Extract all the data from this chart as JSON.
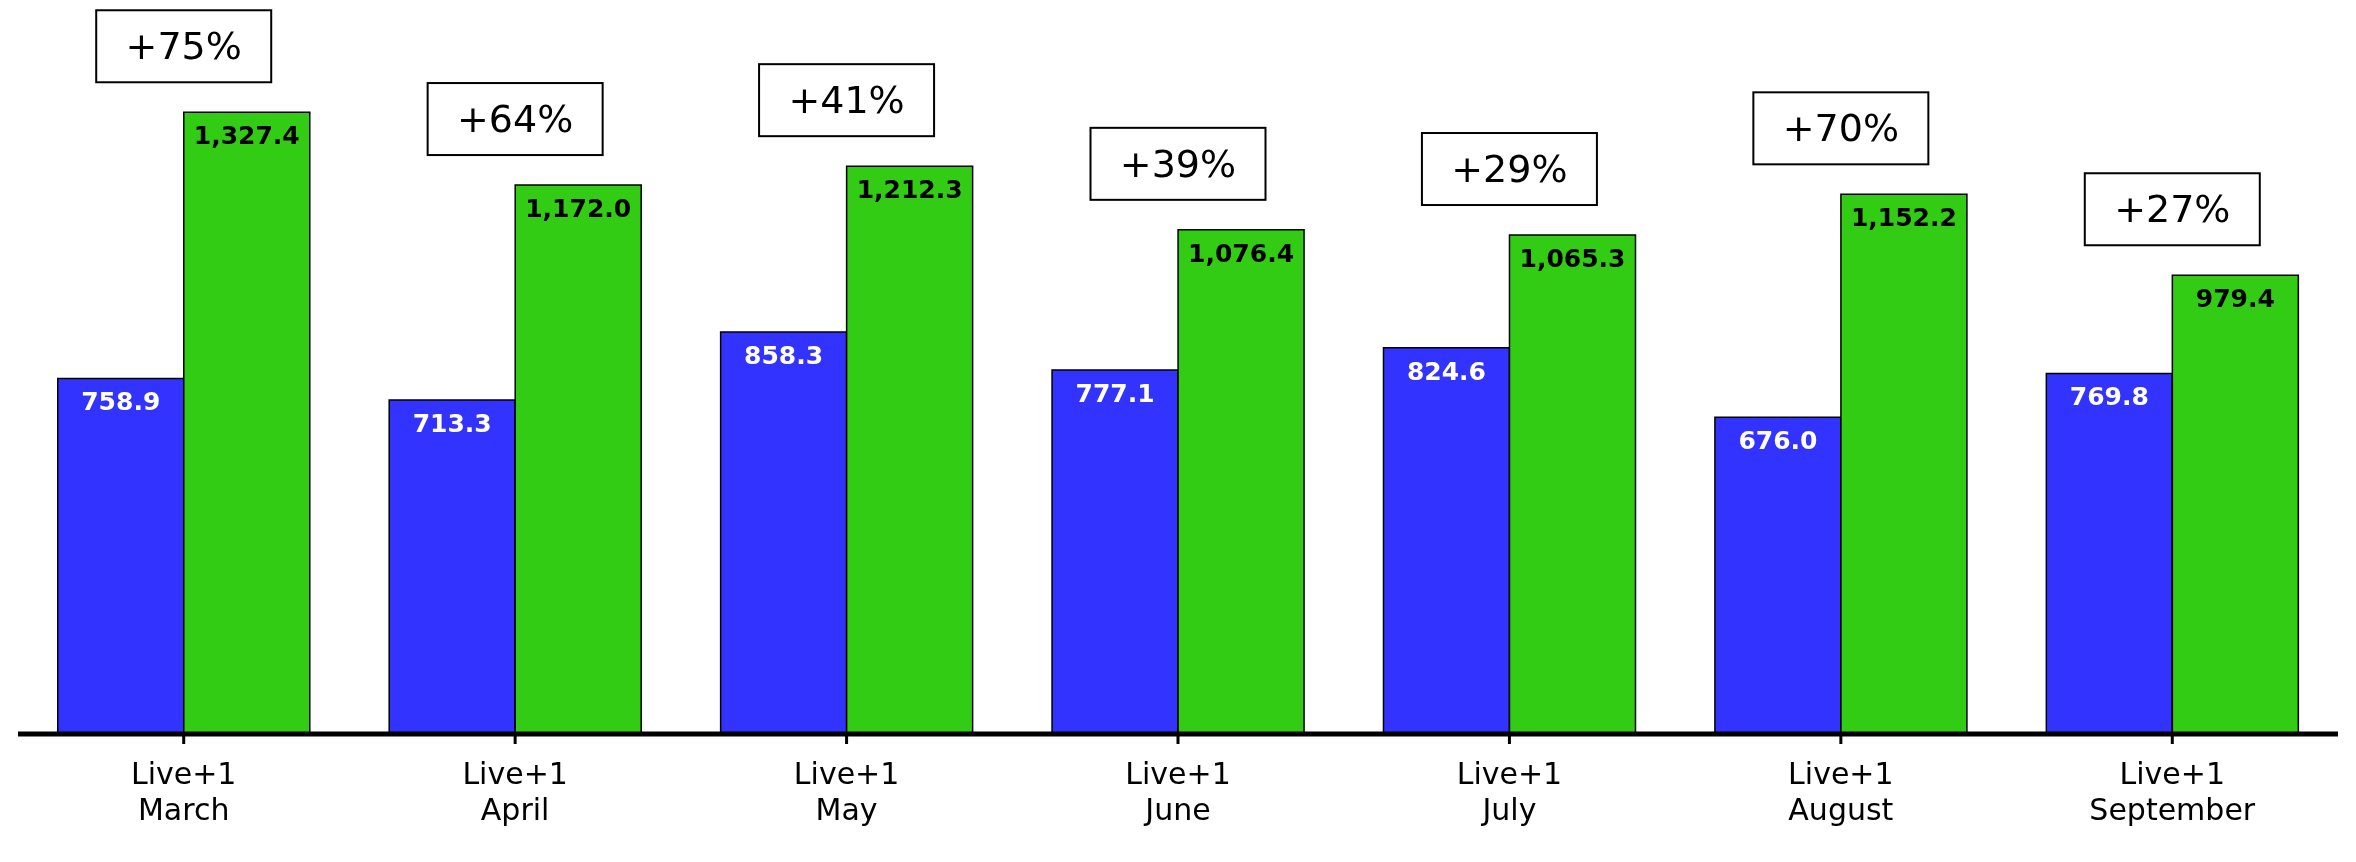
{
  "chart_data": {
    "type": "bar",
    "categories": [
      "Live+1\nMarch",
      "Live+1\nApril",
      "Live+1\nMay",
      "Live+1\nJune",
      "Live+1\nJuly",
      "Live+1\nAugust",
      "Live+1\nSeptember"
    ],
    "series": [
      {
        "color": "#3333ff",
        "values": [
          758.9,
          713.3,
          858.3,
          777.1,
          824.6,
          676.0,
          769.8
        ],
        "value_labels": [
          "758.9",
          "713.3",
          "858.3",
          "777.1",
          "824.6",
          "676.0",
          "769.8"
        ]
      },
      {
        "color": "#33cc14",
        "values": [
          1327.4,
          1172.0,
          1212.3,
          1076.4,
          1065.3,
          1152.2,
          979.4
        ],
        "value_labels": [
          "1,327.4",
          "1,172.0",
          "1,212.3",
          "1,076.4",
          "1,065.3",
          "1,152.2",
          "979.4"
        ]
      }
    ],
    "ylim": [
      0,
      1550
    ],
    "grid": false,
    "legend": false,
    "annotations": [
      {
        "text": "+75%",
        "x": "Live+1\nMarch",
        "y": 1327.4
      },
      {
        "text": "+64%",
        "x": "Live+1\nApril",
        "y": 1172.0
      },
      {
        "text": "+41%",
        "x": "Live+1\nMay",
        "y": 1212.3
      },
      {
        "text": "+39%",
        "x": "Live+1\nJune",
        "y": 1076.4
      },
      {
        "text": "+29%",
        "x": "Live+1\nJuly",
        "y": 1065.3
      },
      {
        "text": "+70%",
        "x": "Live+1\nAugust",
        "y": 1152.2
      },
      {
        "text": "+27%",
        "x": "Live+1\nSeptember",
        "y": 979.4
      }
    ]
  }
}
